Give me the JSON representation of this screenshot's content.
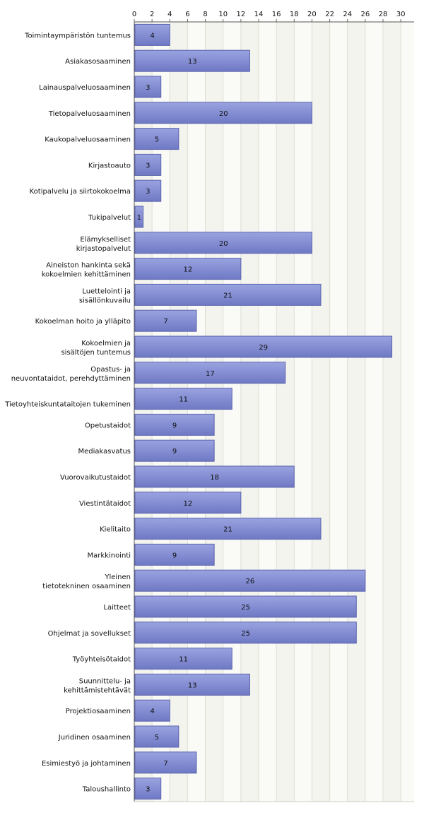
{
  "chart_data": {
    "type": "bar",
    "orientation": "horizontal",
    "title": "",
    "xlabel": "",
    "ylabel": "",
    "xlim": [
      0,
      31.5
    ],
    "x_ticks": [
      0,
      2,
      4,
      6,
      8,
      10,
      12,
      14,
      16,
      18,
      20,
      22,
      24,
      26,
      28,
      30
    ],
    "x_axis_position": "top",
    "grid": true,
    "legend": "none",
    "categories": [
      "Toimintaympäristön tuntemus",
      "Asiakasosaaminen",
      "Lainauspalveluosaaminen",
      "Tietopalveluosaaminen",
      "Kaukopalveluosaaminen",
      "Kirjastoauto",
      "Kotipalvelu ja siirtokokoelma",
      "Tukipalvelut",
      "Elämykselliset kirjastopalvelut",
      "Aineiston hankinta sekä kokoelmien kehittäminen",
      "Luettelointi ja sisällönkuvailu",
      "Kokoelman hoito ja ylläpito",
      "Kokoelmien ja sisältöjen tuntemus",
      "Opastus- ja neuvontataidot, perehdyttäminen",
      "Tietoyhteiskuntataitojen tukeminen",
      "Opetustaidot",
      "Mediakasvatus",
      "Vuorovaikutustaidot",
      "Viestintätaidot",
      "Kielitaito",
      "Markkinointi",
      "Yleinen tietotekninen osaaminen",
      "Laitteet",
      "Ohjelmat ja sovellukset",
      "Työyhteisötaidot",
      "Suunnittelu- ja kehittämistehtävät",
      "Projektiosaaminen",
      "Juridinen osaaminen",
      "Esimiestyö ja johtaminen",
      "Taloushallinto"
    ],
    "values": [
      4,
      13,
      3,
      20,
      5,
      3,
      3,
      1,
      20,
      12,
      21,
      7,
      29,
      17,
      11,
      9,
      9,
      18,
      12,
      21,
      9,
      26,
      25,
      25,
      11,
      13,
      4,
      5,
      7,
      3
    ],
    "colors": {
      "bar_fill_top": "#9aa3e0",
      "bar_fill_bottom": "#6f79c4",
      "bar_stroke": "#5b64ad",
      "plot_bg": "#f3f4ee",
      "grid": "#dcdfd4"
    }
  }
}
